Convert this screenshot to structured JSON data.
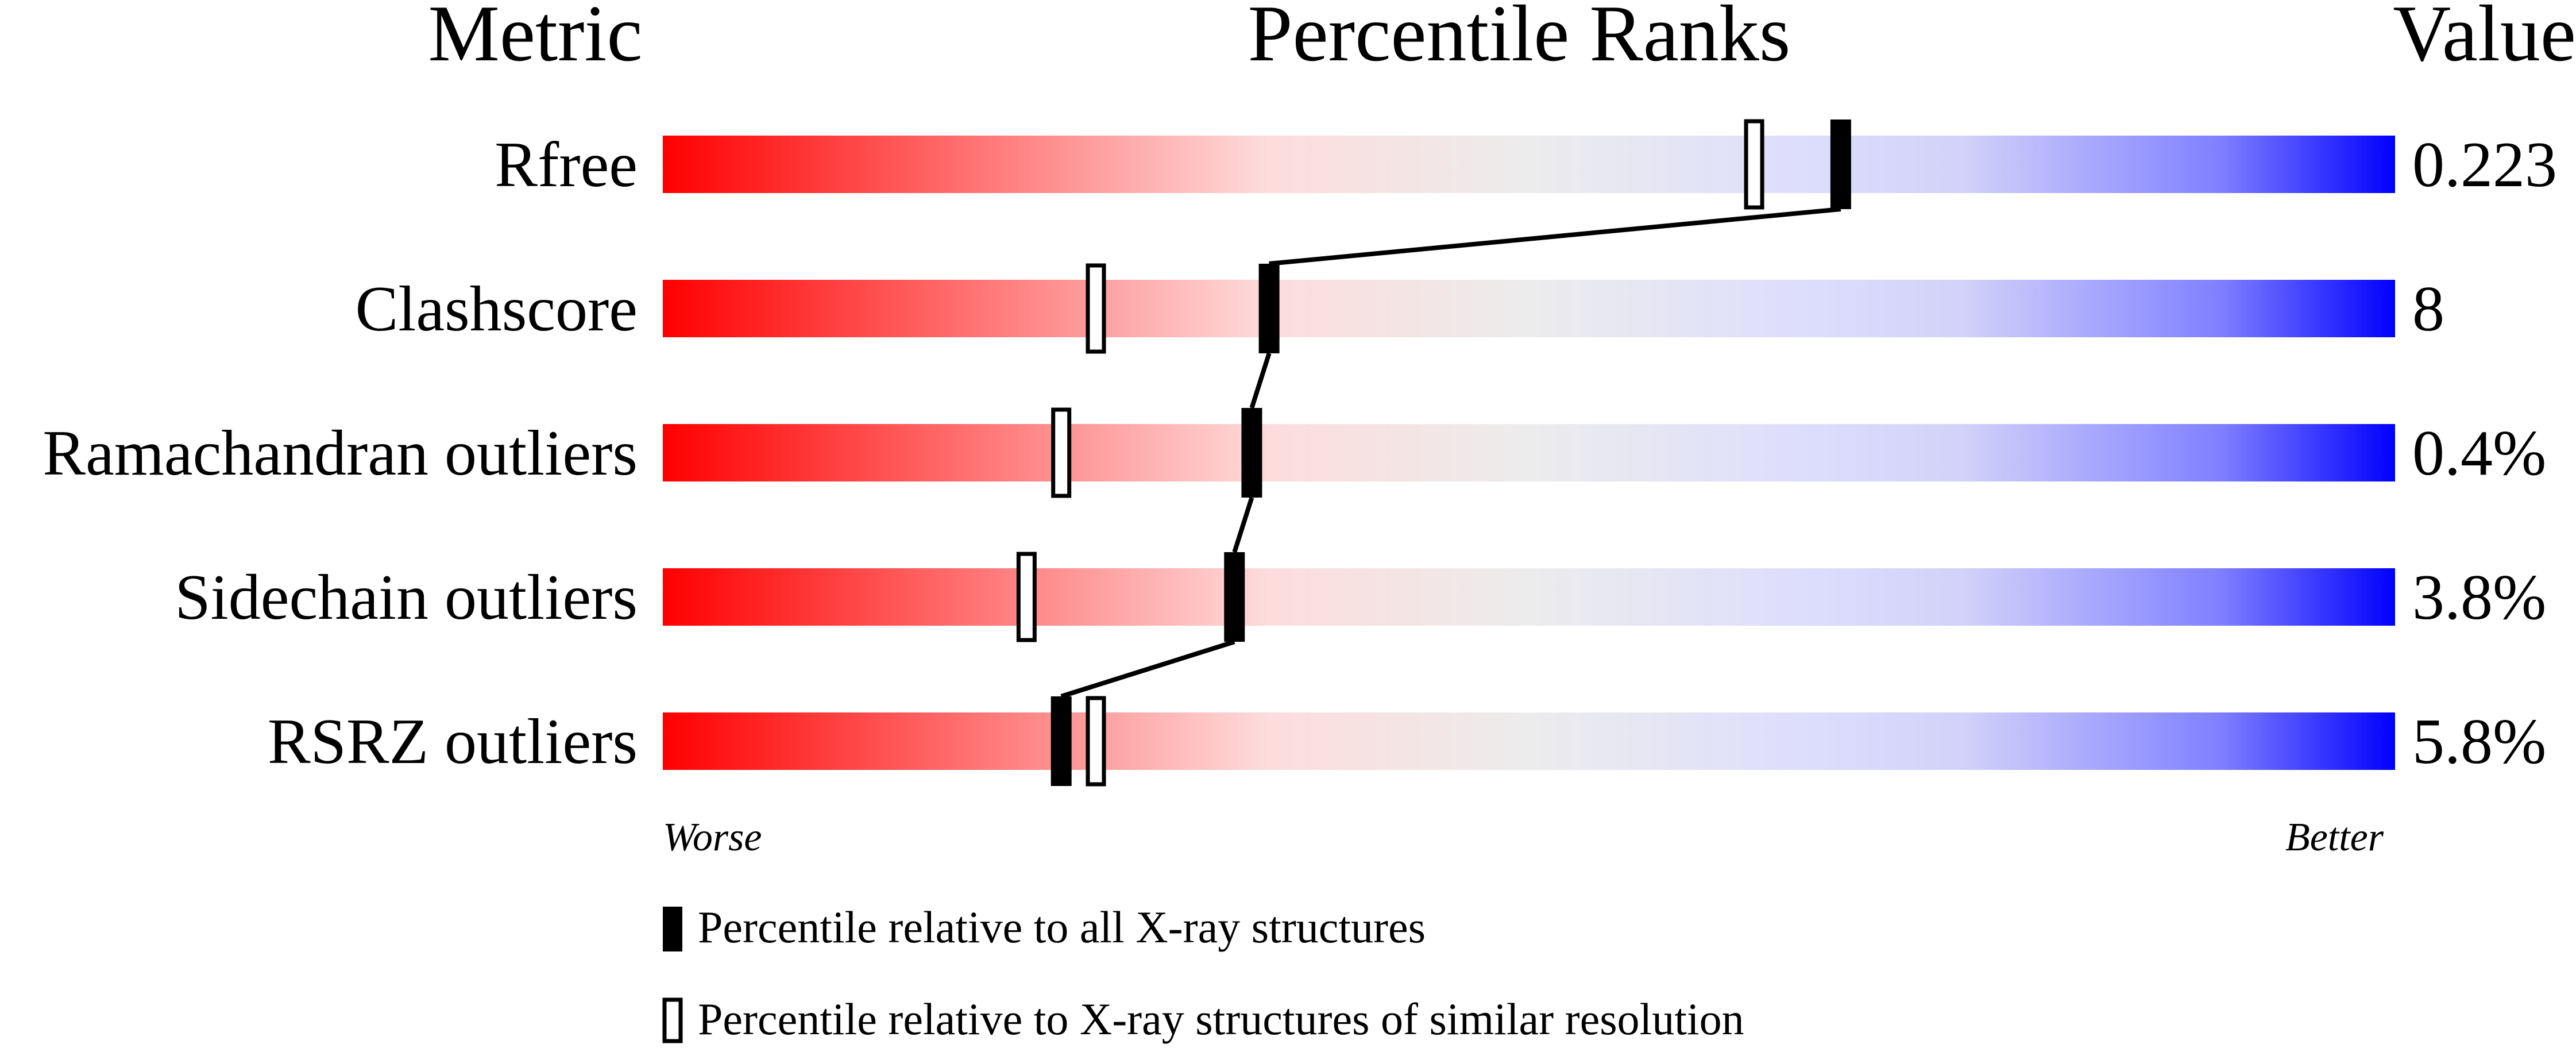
{
  "chart_data": {
    "type": "bar",
    "headers": {
      "metric": "Metric",
      "ranks": "Percentile Ranks",
      "value": "Value"
    },
    "xlim": [
      0,
      100
    ],
    "axis_labels": {
      "left": "Worse",
      "right": "Better"
    },
    "colors": {
      "worse": "#ff0000",
      "middle": "#ececec",
      "better": "#0000ff",
      "marker": "#000000"
    },
    "categories": [
      "Rfree",
      "Clashscore",
      "Ramachandran outliers",
      "Sidechain outliers",
      "RSRZ outliers"
    ],
    "values": [
      "0.223",
      "8",
      "0.4%",
      "3.8%",
      "5.8%"
    ],
    "series": [
      {
        "name": "Percentile relative to all X-ray structures",
        "marker": "filled",
        "values": [
          68,
          35,
          34,
          33,
          23
        ]
      },
      {
        "name": "Percentile relative to X-ray structures of similar resolution",
        "marker": "open",
        "values": [
          63,
          25,
          23,
          21,
          25
        ]
      }
    ],
    "legend": {
      "placement": "bottom"
    }
  }
}
